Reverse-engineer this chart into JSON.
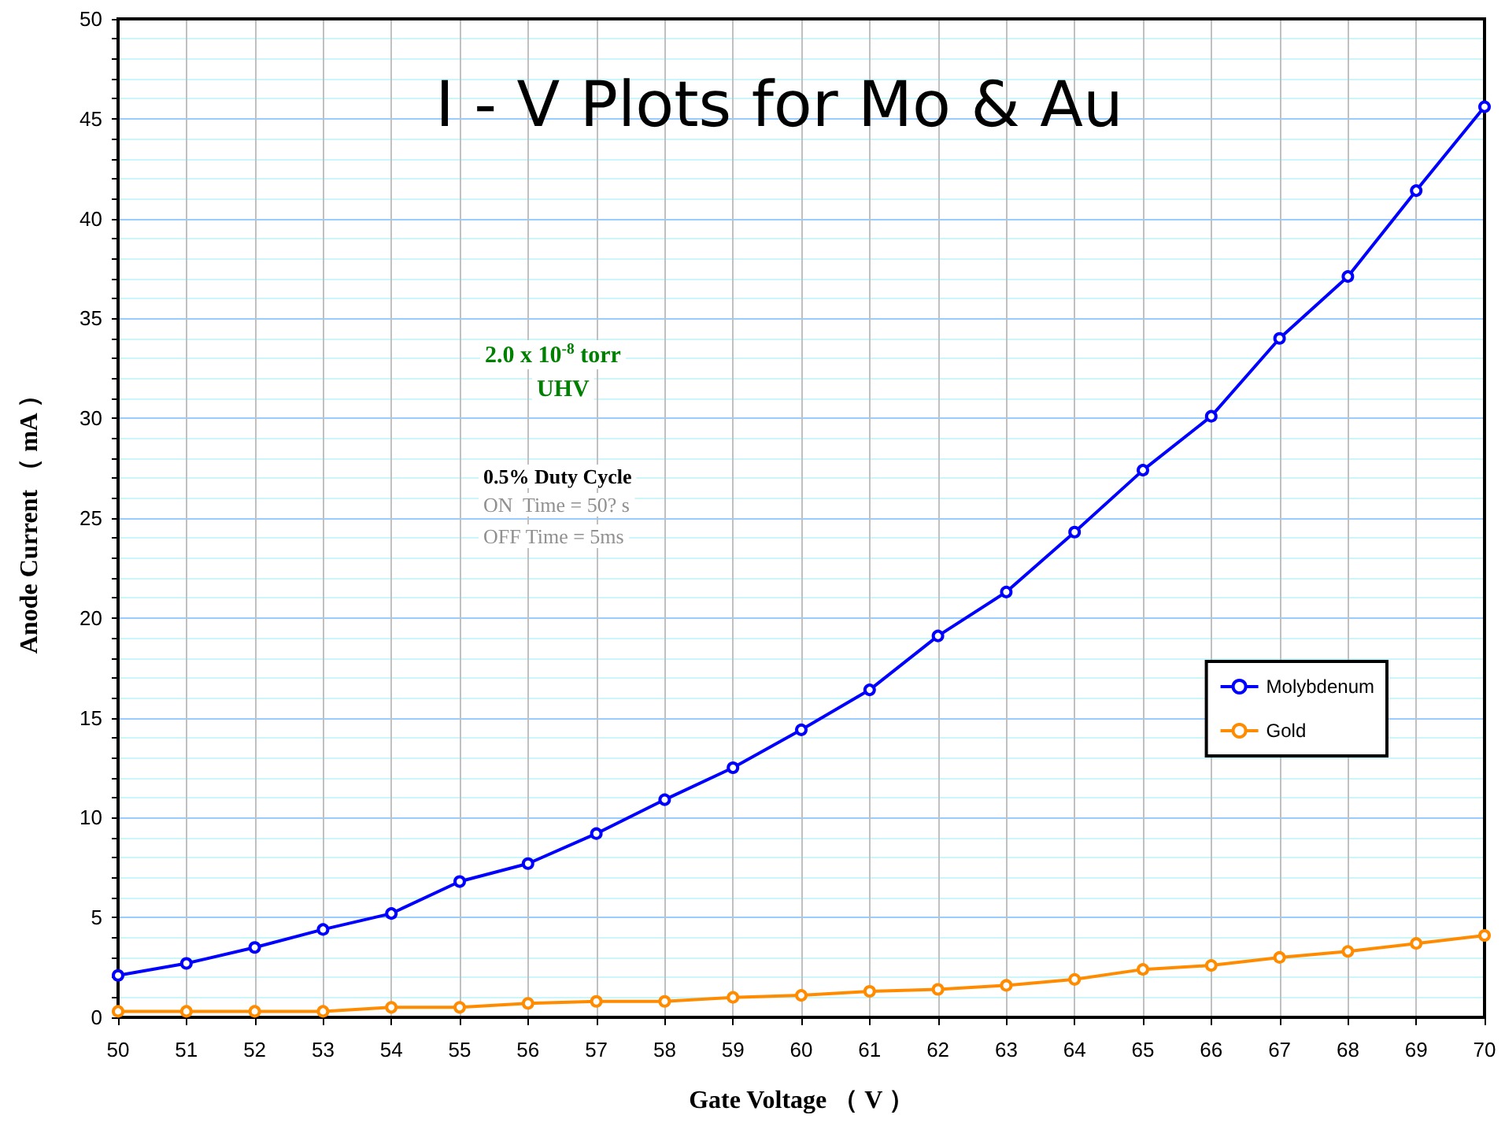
{
  "chart_data": {
    "type": "line",
    "title": "I - V Plots for Mo & Au",
    "xlabel": "Gate Voltage （ V ）",
    "ylabel": "Anode Current （ mA ）",
    "annotations": [
      "2.0 x 10$^{-8}$ torr",
      "UHV",
      "0.5% Duty Cycle",
      "ON  Time = 50? s",
      "OFF Time = 5ms"
    ],
    "x": [
      50,
      51,
      52,
      53,
      54,
      55,
      56,
      57,
      58,
      59,
      60,
      61,
      62,
      63,
      64,
      65,
      66,
      67,
      68,
      69,
      70
    ],
    "series": [
      {
        "name": "Molybdenum",
        "color": "#0000ff",
        "values": [
          2.1,
          2.7,
          3.5,
          4.4,
          5.2,
          6.8,
          7.7,
          9.2,
          10.9,
          12.5,
          14.4,
          16.4,
          19.1,
          21.3,
          24.3,
          27.4,
          30.1,
          34.0,
          37.1,
          41.4,
          45.6
        ]
      },
      {
        "name": "Gold",
        "color": "#ff8c00",
        "values": [
          0.3,
          0.3,
          0.3,
          0.3,
          0.5,
          0.5,
          0.7,
          0.8,
          0.8,
          1.0,
          1.1,
          1.3,
          1.4,
          1.6,
          1.9,
          2.4,
          2.6,
          3.0,
          3.3,
          3.7,
          4.1
        ]
      }
    ],
    "xlim": [
      50,
      70
    ],
    "xticks": [
      50,
      51,
      52,
      53,
      54,
      55,
      56,
      57,
      58,
      59,
      60,
      61,
      62,
      63,
      64,
      65,
      66,
      67,
      68,
      69,
      70
    ],
    "ylim": [
      0,
      50
    ],
    "yticks": [
      0,
      {
        "value": 1,
        "label": null
      },
      {
        "value": 2,
        "label": null
      },
      {
        "value": 3,
        "label": null
      },
      {
        "value": 4,
        "label": null
      },
      5,
      {
        "value": 6,
        "label": null
      },
      {
        "value": 7,
        "label": null
      },
      {
        "value": 8,
        "label": null
      },
      {
        "value": 9,
        "label": null
      },
      10,
      {
        "value": 11,
        "label": null
      },
      {
        "value": 12,
        "label": null
      },
      {
        "value": 13,
        "label": null
      },
      {
        "value": 14,
        "label": null
      },
      15,
      {
        "value": 16,
        "label": null
      },
      {
        "value": 17,
        "label": null
      },
      {
        "value": 18,
        "label": null
      },
      {
        "value": 19,
        "label": null
      },
      20,
      {
        "value": 21,
        "label": null
      },
      {
        "value": 22,
        "label": null
      },
      {
        "value": 23,
        "label": null
      },
      {
        "value": 24,
        "label": null
      },
      25,
      {
        "value": 26,
        "label": null
      },
      {
        "value": 27,
        "label": null
      },
      {
        "value": 28,
        "label": null
      },
      {
        "value": 29,
        "label": null
      },
      30,
      {
        "value": 31,
        "label": null
      },
      {
        "value": 32,
        "label": null
      },
      {
        "value": 33,
        "label": null
      },
      {
        "value": 34,
        "label": null
      },
      35,
      {
        "value": 36,
        "label": null
      },
      {
        "value": 37,
        "label": null
      },
      {
        "value": 38,
        "label": null
      },
      {
        "value": 39,
        "label": null
      },
      40,
      {
        "value": 41,
        "label": null
      },
      {
        "value": 42,
        "label": null
      },
      {
        "value": 43,
        "label": null
      },
      {
        "value": 44,
        "label": null
      },
      45,
      {
        "value": 46,
        "label": null
      },
      {
        "value": 47,
        "label": null
      },
      {
        "value": 48,
        "label": null
      },
      {
        "value": 49,
        "label": null
      },
      50
    ],
    "grid": true,
    "legend": "right",
    "marker": "circle",
    "line_style": "solid"
  }
}
